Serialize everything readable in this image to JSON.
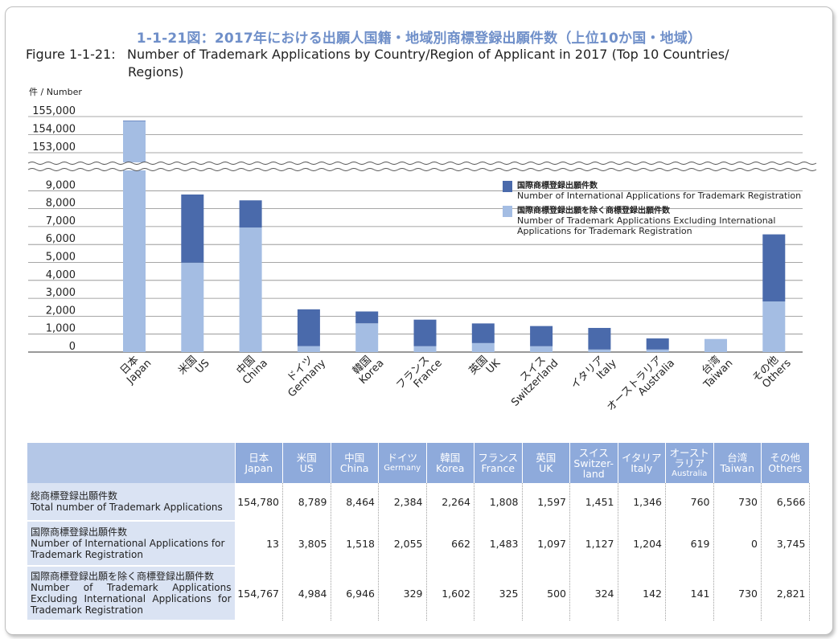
{
  "title_jp": "1-1-21図：2017年における出願人国籍・地域別商標登録出願件数（上位10か国・地域）",
  "title_en_prefix": "Figure 1-1-21:",
  "title_en_line1": "Number of Trademark Applications by Country/Region of Applicant in 2017 (Top 10 Countries/",
  "title_en_line2": "Regions)",
  "chart_data": {
    "type": "bar",
    "stacked": true,
    "broken_y_axis": true,
    "ylabel": "件 / Number",
    "y_ticks_lower": [
      "0",
      "1,000",
      "2,000",
      "3,000",
      "4,000",
      "5,000",
      "6,000",
      "7,000",
      "8,000",
      "9,000"
    ],
    "y_ticks_upper": [
      "153,000",
      "154,000",
      "155,000"
    ],
    "categories": [
      {
        "jp": "日本",
        "en": "Japan"
      },
      {
        "jp": "米国",
        "en": "US"
      },
      {
        "jp": "中国",
        "en": "China"
      },
      {
        "jp": "ドイツ",
        "en": "Germany"
      },
      {
        "jp": "韓国",
        "en": "Korea"
      },
      {
        "jp": "フランス",
        "en": "France"
      },
      {
        "jp": "英国",
        "en": "UK"
      },
      {
        "jp": "スイス",
        "en": "Switzerland"
      },
      {
        "jp": "イタリア",
        "en": "Italy"
      },
      {
        "jp": "オーストラリア",
        "en": "Australia"
      },
      {
        "jp": "台湾",
        "en": "Taiwan"
      },
      {
        "jp": "その他",
        "en": "Others"
      }
    ],
    "series": [
      {
        "name": "国際商標登録出願件数 Number of International Applications for Trademark Registration",
        "color": "#4a6aab",
        "values": [
          13,
          3805,
          1518,
          2055,
          662,
          1483,
          1097,
          1127,
          1204,
          619,
          0,
          3745
        ]
      },
      {
        "name": "国際商標登録出願を除く商標登録出願件数 Number of Trademark Applications Excluding International Applications for Trademark Registration",
        "color": "#a4bde3",
        "values": [
          154767,
          4984,
          6946,
          329,
          1602,
          325,
          500,
          324,
          142,
          141,
          730,
          2821
        ]
      }
    ],
    "legend": {
      "position": "top-right",
      "items": [
        {
          "jp": "国際商標登録出願件数",
          "en1": "Number of International Applications for Trademark Registration",
          "en2": "",
          "color": "#4a6aab"
        },
        {
          "jp": "国際商標登録出願を除く商標登録出願件数",
          "en1": "Number of Trademark Applications Excluding International",
          "en2": "Applications for Trademark Registration",
          "color": "#a4bde3"
        }
      ]
    }
  },
  "table": {
    "headers": [
      {
        "jp": "日本",
        "en": "Japan"
      },
      {
        "jp": "米国",
        "en": "US"
      },
      {
        "jp": "中国",
        "en": "China"
      },
      {
        "jp": "ドイツ",
        "en": "Germany"
      },
      {
        "jp": "韓国",
        "en": "Korea"
      },
      {
        "jp": "フランス",
        "en": "France"
      },
      {
        "jp": "英国",
        "en": "UK"
      },
      {
        "jp": "スイス",
        "en": "Switzer-land"
      },
      {
        "jp": "イタリア",
        "en": "Italy"
      },
      {
        "jp": "オースト ラリア",
        "en": "Australia"
      },
      {
        "jp": "台湾",
        "en": "Taiwan"
      },
      {
        "jp": "その他",
        "en": "Others"
      }
    ],
    "rows": [
      {
        "jp": "総商標登録出願件数",
        "en": "Total number of Trademark Applications",
        "values": [
          "154,780",
          "8,789",
          "8,464",
          "2,384",
          "2,264",
          "1,808",
          "1,597",
          "1,451",
          "1,346",
          "760",
          "730",
          "6,566"
        ]
      },
      {
        "jp": "国際商標登録出願件数",
        "en": "Number of International Applications for Trademark Registration",
        "values": [
          "13",
          "3,805",
          "1,518",
          "2,055",
          "662",
          "1,483",
          "1,097",
          "1,127",
          "1,204",
          "619",
          "0",
          "3,745"
        ]
      },
      {
        "jp": "国際商標登録出願を除く商標登録出願件数",
        "en": "Number of Trademark Applications Excluding International Applications for Trademark Registration",
        "values": [
          "154,767",
          "4,984",
          "6,946",
          "329",
          "1,602",
          "325",
          "500",
          "324",
          "142",
          "141",
          "730",
          "2,821"
        ]
      }
    ]
  }
}
